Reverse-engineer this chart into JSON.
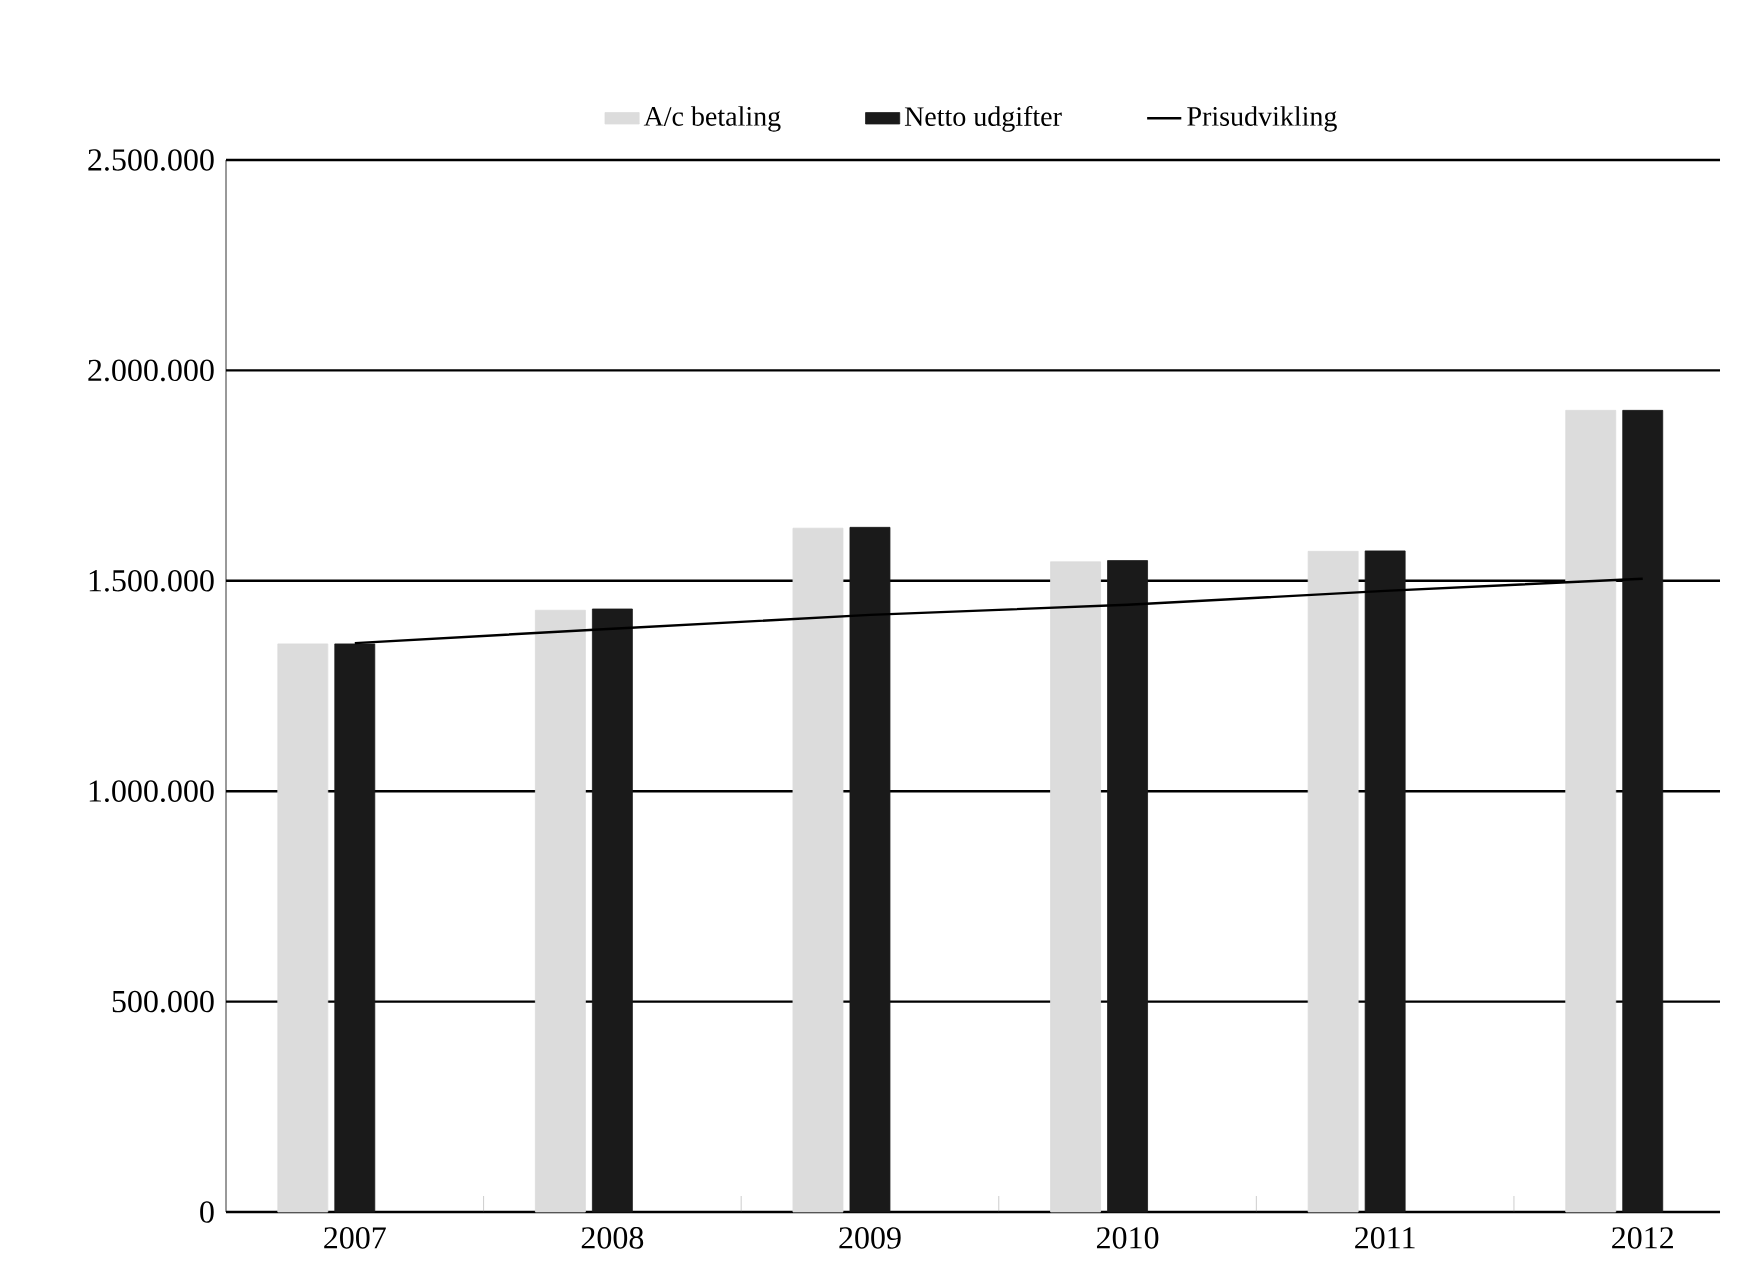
{
  "chart_data": {
    "type": "bar",
    "categories": [
      "2007",
      "2008",
      "2009",
      "2010",
      "2011",
      "2012"
    ],
    "series": [
      {
        "name": "A/c betaling",
        "color": "#dcdcdc",
        "values": [
          1350000,
          1430000,
          1625000,
          1545000,
          1570000,
          1905000
        ]
      },
      {
        "name": "Netto udgifter",
        "color": "#1a1a1a",
        "values": [
          1350000,
          1433000,
          1627000,
          1548000,
          1571000,
          1905000
        ]
      },
      {
        "name": "Prisudvikling",
        "type": "line",
        "color": "#000000",
        "values": [
          1352000,
          1386000,
          1419000,
          1443000,
          1476000,
          1505000
        ]
      }
    ],
    "ylim": [
      0,
      2500000
    ],
    "yticks": [
      0,
      {
        "value": 500000,
        "label": "500.000"
      },
      {
        "value": 1000000,
        "label": "1.000.000"
      },
      {
        "value": 1500000,
        "label": "1.500.000"
      },
      {
        "value": 2000000,
        "label": "2.000.000"
      },
      {
        "value": 2500000,
        "label": "2.500.000"
      }
    ],
    "grid": "y",
    "legend": "top"
  }
}
